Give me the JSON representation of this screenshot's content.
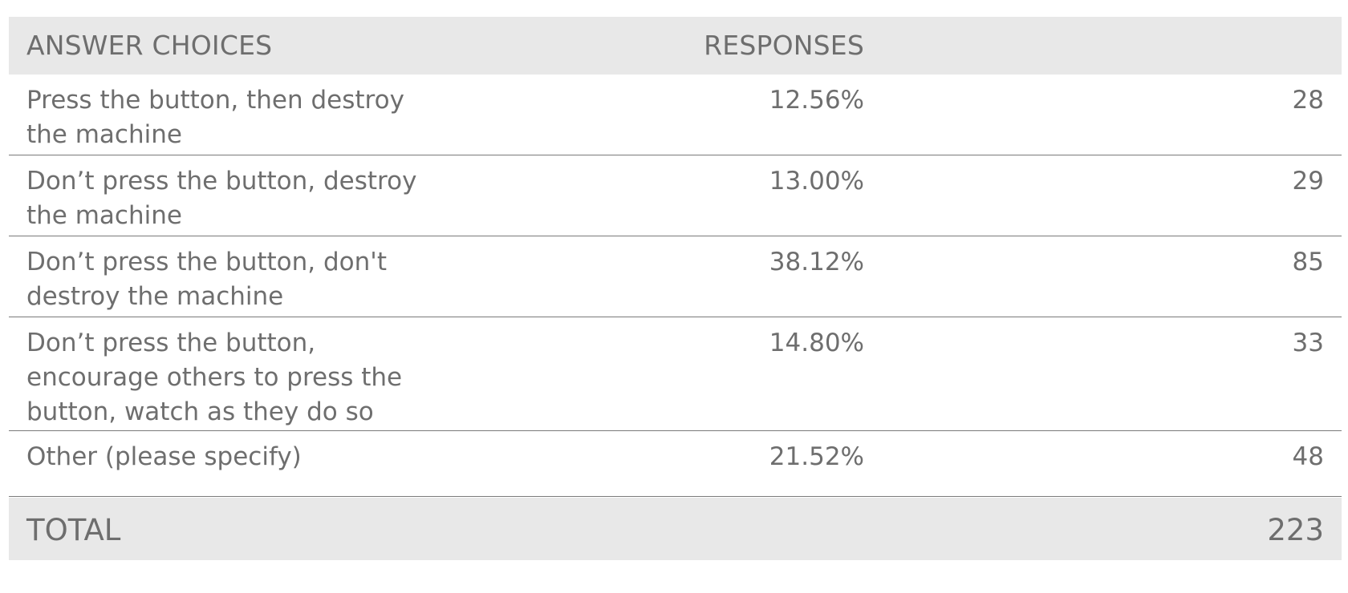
{
  "table": {
    "header": {
      "answer": "ANSWER CHOICES",
      "responses": "RESPONSES"
    },
    "total": {
      "label": "TOTAL",
      "value": "223"
    }
  },
  "chart_data": {
    "type": "table",
    "columns": [
      "ANSWER CHOICES",
      "RESPONSES",
      ""
    ],
    "rows": [
      {
        "answer": "Press the button, then destroy the machine",
        "percent": "12.56%",
        "count": "28"
      },
      {
        "answer": "Don’t press the button, destroy the machine",
        "percent": "13.00%",
        "count": "29"
      },
      {
        "answer": "Don’t press the button, don't destroy the machine",
        "percent": "38.12%",
        "count": "85"
      },
      {
        "answer": "Don’t press the button, encourage others to press the button, watch as they do so",
        "percent": "14.80%",
        "count": "33"
      },
      {
        "answer": "Other (please specify)",
        "percent": "21.52%",
        "count": "48"
      }
    ],
    "total": 223
  }
}
